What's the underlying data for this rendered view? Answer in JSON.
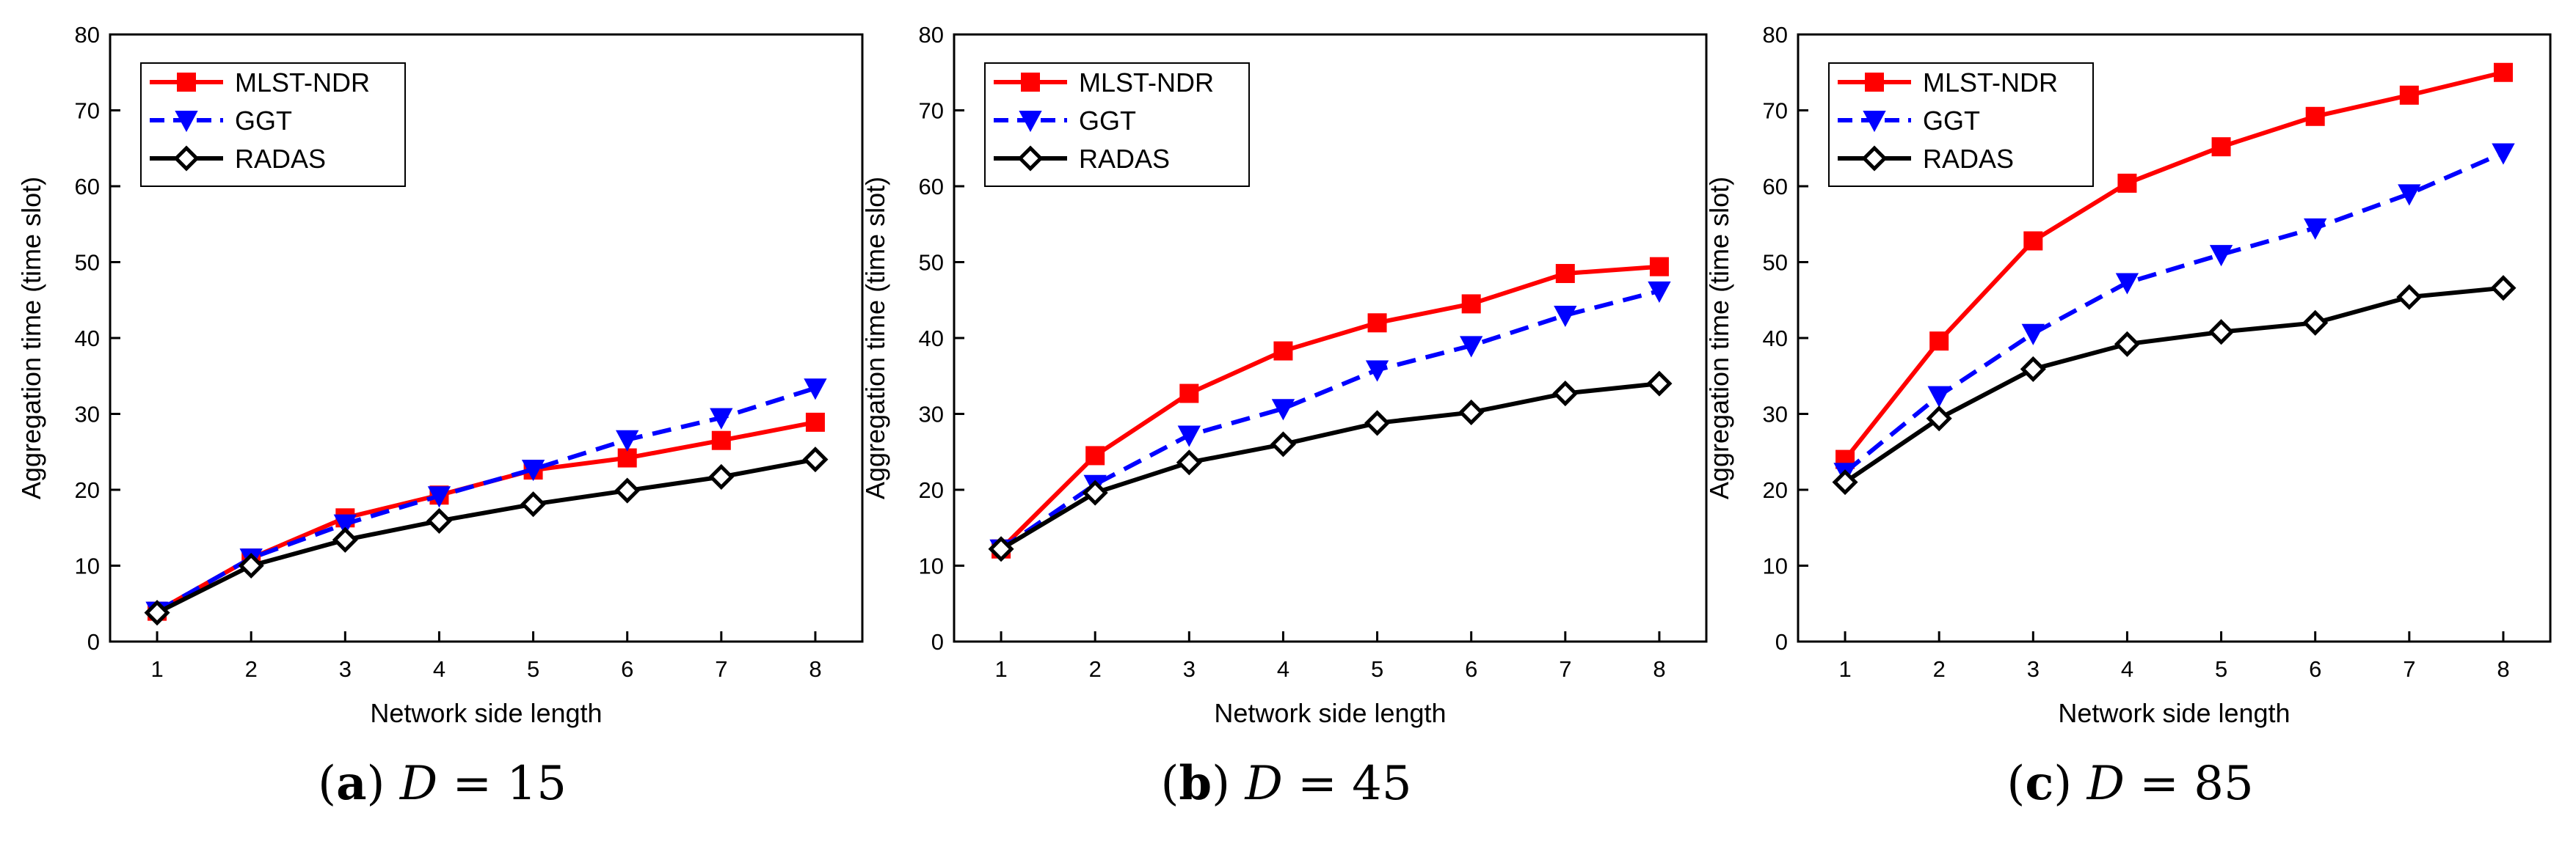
{
  "figure": {
    "chart_data": [
      {
        "type": "line",
        "caption": {
          "letter": "a",
          "variable": "D",
          "equals": " = ",
          "value": "15"
        },
        "xlabel": "Network side length",
        "ylabel": "Aggregation time (time slot)",
        "x": [
          1,
          2,
          3,
          4,
          5,
          6,
          7,
          8
        ],
        "xlim": [
          0.5,
          8.5
        ],
        "ylim": [
          0,
          80
        ],
        "yticks": [
          0,
          10,
          20,
          30,
          40,
          50,
          60,
          70,
          80
        ],
        "xticks": [
          1,
          2,
          3,
          4,
          5,
          6,
          7,
          8
        ],
        "legend": "top-left",
        "series": [
          {
            "name": "MLST-NDR",
            "color": "#ff0000",
            "dash": "solid",
            "marker": "square",
            "values": [
              4,
              11,
              16.3,
              19.3,
              22.6,
              24.2,
              26.5,
              28.9
            ]
          },
          {
            "name": "GGT",
            "color": "#0000ff",
            "dash": "dashed",
            "marker": "triangle-down",
            "values": [
              4,
              11,
              15.5,
              19.2,
              22.7,
              26.6,
              29.5,
              33.4
            ]
          },
          {
            "name": "RADAS",
            "color": "#000000",
            "dash": "solid",
            "marker": "diamond",
            "values": [
              3.8,
              10,
              13.4,
              15.9,
              18.1,
              19.9,
              21.7,
              24
            ]
          }
        ]
      },
      {
        "type": "line",
        "caption": {
          "letter": "b",
          "variable": "D",
          "equals": " = ",
          "value": "45"
        },
        "xlabel": "Network side length",
        "ylabel": "Aggregation time (time slot)",
        "x": [
          1,
          2,
          3,
          4,
          5,
          6,
          7,
          8
        ],
        "xlim": [
          0.5,
          8.5
        ],
        "ylim": [
          0,
          80
        ],
        "yticks": [
          0,
          10,
          20,
          30,
          40,
          50,
          60,
          70,
          80
        ],
        "xticks": [
          1,
          2,
          3,
          4,
          5,
          6,
          7,
          8
        ],
        "legend": "top-left",
        "series": [
          {
            "name": "MLST-NDR",
            "color": "#ff0000",
            "dash": "solid",
            "marker": "square",
            "values": [
              12.2,
              24.5,
              32.7,
              38.3,
              42,
              44.5,
              48.5,
              49.4
            ]
          },
          {
            "name": "GGT",
            "color": "#0000ff",
            "dash": "dashed",
            "marker": "triangle-down",
            "values": [
              12.2,
              20.7,
              27.2,
              30.7,
              35.8,
              39,
              43,
              46.2
            ]
          },
          {
            "name": "RADAS",
            "color": "#000000",
            "dash": "solid",
            "marker": "diamond",
            "values": [
              12.2,
              19.6,
              23.6,
              26,
              28.8,
              30.2,
              32.7,
              34
            ]
          }
        ]
      },
      {
        "type": "line",
        "caption": {
          "letter": "c",
          "variable": "D",
          "equals": " = ",
          "value": "85"
        },
        "xlabel": "Network side length",
        "ylabel": "Aggregation time (time slot)",
        "x": [
          1,
          2,
          3,
          4,
          5,
          6,
          7,
          8
        ],
        "xlim": [
          0.5,
          8.5
        ],
        "ylim": [
          0,
          80
        ],
        "yticks": [
          0,
          10,
          20,
          30,
          40,
          50,
          60,
          70,
          80
        ],
        "xticks": [
          1,
          2,
          3,
          4,
          5,
          6,
          7,
          8
        ],
        "legend": "top-left",
        "series": [
          {
            "name": "MLST-NDR",
            "color": "#ff0000",
            "dash": "solid",
            "marker": "square",
            "values": [
              24,
              39.6,
              52.8,
              60.4,
              65.2,
              69.2,
              72,
              75
            ]
          },
          {
            "name": "GGT",
            "color": "#0000ff",
            "dash": "dashed",
            "marker": "triangle-down",
            "values": [
              22.3,
              32.4,
              40.6,
              47.3,
              51,
              54.5,
              59,
              64.4
            ]
          },
          {
            "name": "RADAS",
            "color": "#000000",
            "dash": "solid",
            "marker": "diamond",
            "values": [
              21,
              29.4,
              35.9,
              39.2,
              40.8,
              42,
              45.4,
              46.6
            ]
          }
        ]
      }
    ]
  }
}
